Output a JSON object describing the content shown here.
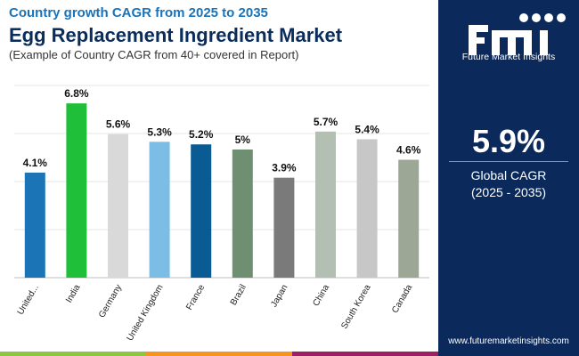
{
  "header": {
    "subtitle": "Country growth CAGR from 2025 to 2035",
    "title": "Egg Replacement Ingredient Market",
    "note": "(Example of Country CAGR from 40+ covered in Report)"
  },
  "sidebar": {
    "brand": "Future Market Insights",
    "cagr_value": "5.9%",
    "cagr_label_line1": "Global CAGR",
    "cagr_label_line2": "(2025 - 2035)",
    "website": "www.futuremarketinsights.com"
  },
  "colors": {
    "sidebar_bg": "#0b2a5b",
    "footer": [
      "#8dc63f",
      "#f7941d",
      "#9e1f63"
    ]
  },
  "chart_data": {
    "type": "bar",
    "title": "Egg Replacement Ingredient Market",
    "categories": [
      "United...",
      "India",
      "Germany",
      "United Kingdom",
      "France",
      "Brazil",
      "Japan",
      "China",
      "South Korea",
      "Canada"
    ],
    "values": [
      4.1,
      6.8,
      5.6,
      5.3,
      5.2,
      5.0,
      3.9,
      5.7,
      5.4,
      4.6
    ],
    "labels": [
      "4.1%",
      "6.8%",
      "5.6%",
      "5.3%",
      "5.2%",
      "5%",
      "3.9%",
      "5.7%",
      "5.4%",
      "4.6%"
    ],
    "colors": [
      "#1a74b5",
      "#1fbf3a",
      "#d9d9d9",
      "#7bbde5",
      "#0a5a93",
      "#6f8f72",
      "#7a7a7a",
      "#b4bfb4",
      "#c7c7c7",
      "#9ca895"
    ],
    "ylim": [
      0,
      7.5
    ],
    "grid": true,
    "xlabel": "",
    "ylabel": ""
  }
}
